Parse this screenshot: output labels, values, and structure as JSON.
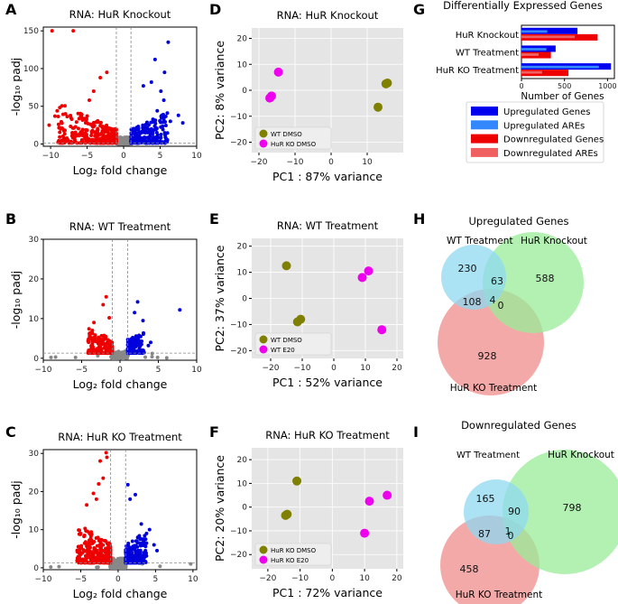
{
  "panel_letters": {
    "A": "A",
    "B": "B",
    "C": "C",
    "D": "D",
    "E": "E",
    "F": "F",
    "G": "G",
    "H": "H",
    "I": "I"
  },
  "chart_data": [
    {
      "id": "A",
      "type": "scatter",
      "title": "RNA: HuR Knockout",
      "xlabel": "Log₂ fold change",
      "ylabel": "-log₁₀ padj",
      "xlim": [
        -11,
        10
      ],
      "ylim": [
        -3,
        155
      ],
      "xticks": [
        -10,
        -5,
        0,
        5,
        10
      ],
      "yticks": [
        0,
        50,
        100,
        150
      ],
      "xtick_labels": [
        "−10",
        "−5",
        "0",
        "5",
        "10"
      ],
      "ytick_labels": [
        "0",
        "50",
        "100",
        "150"
      ],
      "fc_threshold": 1,
      "padj_line": 1.3,
      "colors": {
        "up": "#0000dd",
        "down": "#ee0000",
        "ns": "#888888"
      },
      "gen": {
        "seed": 11,
        "n_up": 240,
        "n_down": 340,
        "n_ns": 260,
        "up_max_x": 6,
        "down_min_x": -9,
        "y_mean": 18,
        "y_max": 130
      },
      "highlight": [
        [
          -9.8,
          150
        ],
        [
          -6.9,
          150
        ],
        [
          -9.1,
          44
        ],
        [
          -9.4,
          37
        ],
        [
          -10.2,
          25
        ],
        [
          -8.6,
          20
        ],
        [
          6.1,
          135
        ],
        [
          4.3,
          112
        ],
        [
          5.6,
          95
        ],
        [
          3.8,
          82
        ],
        [
          5.1,
          70
        ],
        [
          2.7,
          77
        ],
        [
          5.5,
          58
        ],
        [
          7.5,
          38
        ],
        [
          8.1,
          28
        ],
        [
          6.4,
          30
        ],
        [
          4.6,
          44
        ],
        [
          -4.1,
          70
        ],
        [
          -3.2,
          88
        ],
        [
          -2.3,
          95
        ],
        [
          -4.7,
          58
        ]
      ]
    },
    {
      "id": "B",
      "type": "scatter",
      "title": "RNA: WT Treatment",
      "xlabel": "Log₂ fold change",
      "ylabel": "-log₁₀ padj",
      "xlim": [
        -10,
        10
      ],
      "ylim": [
        -0.5,
        30
      ],
      "xticks": [
        -10,
        -5,
        0,
        5,
        10
      ],
      "yticks": [
        0,
        10,
        20,
        30
      ],
      "xtick_labels": [
        "−10",
        "−5",
        "0",
        "5",
        "10"
      ],
      "ytick_labels": [
        "0",
        "10",
        "20",
        "30"
      ],
      "fc_threshold": 1,
      "padj_line": 1.3,
      "colors": {
        "up": "#0000dd",
        "down": "#ee0000",
        "ns": "#888888"
      },
      "gen": {
        "seed": 23,
        "n_up": 140,
        "n_down": 200,
        "n_ns": 200,
        "up_max_x": 3.2,
        "down_min_x": -4.2,
        "y_mean": 3.5,
        "y_max": 15
      },
      "highlight": [
        [
          -1.8,
          15.5
        ],
        [
          -2.2,
          13.5
        ],
        [
          2.3,
          14.2
        ],
        [
          1.9,
          11.5
        ],
        [
          7.8,
          12.2
        ],
        [
          3.0,
          9.5
        ],
        [
          -3.4,
          9.0
        ],
        [
          -1.4,
          10.2
        ],
        [
          4.0,
          4.0
        ],
        [
          3.7,
          3.2
        ],
        [
          -9.0,
          0.2
        ],
        [
          -8.4,
          0.3
        ],
        [
          -5.8,
          0.2
        ],
        [
          4.9,
          0.2
        ],
        [
          6.1,
          0.1
        ]
      ]
    },
    {
      "id": "C",
      "type": "scatter",
      "title": "RNA: HuR KO Treatment",
      "xlabel": "Log₂ fold change",
      "ylabel": "-log₁₀ padj",
      "xlim": [
        -10,
        10.5
      ],
      "ylim": [
        -0.5,
        31
      ],
      "xticks": [
        -10,
        -5,
        0,
        5,
        10
      ],
      "yticks": [
        0,
        10,
        20,
        30
      ],
      "xtick_labels": [
        "−10",
        "−5",
        "0",
        "5",
        "10"
      ],
      "ytick_labels": [
        "0",
        "10",
        "20",
        "30"
      ],
      "fc_threshold": 1,
      "padj_line": 1.3,
      "colors": {
        "up": "#0000dd",
        "down": "#ee0000",
        "ns": "#888888"
      },
      "gen": {
        "seed": 37,
        "n_up": 220,
        "n_down": 300,
        "n_ns": 260,
        "up_max_x": 3.8,
        "down_min_x": -5.5,
        "y_mean": 5,
        "y_max": 22
      },
      "highlight": [
        [
          -1.6,
          30.2
        ],
        [
          -1.5,
          29.0
        ],
        [
          -2.4,
          28.0
        ],
        [
          -2.6,
          22.0
        ],
        [
          -2.0,
          23.5
        ],
        [
          -3.3,
          19.5
        ],
        [
          -2.9,
          18.0
        ],
        [
          -4.2,
          16.5
        ],
        [
          1.3,
          21.8
        ],
        [
          2.3,
          19.2
        ],
        [
          1.6,
          18.0
        ],
        [
          3.1,
          11.5
        ],
        [
          4.2,
          10.0
        ],
        [
          3.8,
          9.0
        ],
        [
          4.8,
          6.0
        ],
        [
          5.2,
          4.5
        ],
        [
          9.7,
          1.0
        ],
        [
          -7.9,
          0.3
        ],
        [
          5.6,
          0.4
        ],
        [
          -9.0,
          0.2
        ]
      ]
    },
    {
      "id": "D",
      "type": "scatter",
      "title": "RNA: HuR Knockout",
      "xlabel": "PC1 : 87% variance",
      "ylabel": "PC2: 8% variance",
      "xlim": [
        -22,
        20
      ],
      "ylim": [
        -24,
        24
      ],
      "xticks": [
        -20,
        -10,
        0,
        10
      ],
      "yticks": [
        -20,
        -10,
        0,
        10,
        20
      ],
      "xtick_labels": [
        "−20",
        "−10",
        "0",
        "10"
      ],
      "ytick_labels": [
        "−20",
        "−10",
        "0",
        "10",
        "20"
      ],
      "legend_position": "lower-left",
      "series": [
        {
          "name": "WT DMSO",
          "color": "#808000",
          "points": [
            [
              15.2,
              2.5
            ],
            [
              15.6,
              2.8
            ],
            [
              13.0,
              -6.5
            ]
          ]
        },
        {
          "name": "HuR KO DMSO",
          "color": "#ee00ee",
          "points": [
            [
              -14.6,
              7.0
            ],
            [
              -17.0,
              -3.0
            ],
            [
              -16.5,
              -2.2
            ]
          ]
        }
      ]
    },
    {
      "id": "E",
      "type": "scatter",
      "title": "RNA: WT Treatment",
      "xlabel": "PC1 : 52% variance",
      "ylabel": "PC2: 37% variance",
      "xlim": [
        -26,
        22
      ],
      "ylim": [
        -23,
        23
      ],
      "xticks": [
        -20,
        -10,
        0,
        10,
        20
      ],
      "yticks": [
        -20,
        -10,
        0,
        10,
        20
      ],
      "xtick_labels": [
        "−20",
        "−10",
        "0",
        "10",
        "20"
      ],
      "ytick_labels": [
        "−20",
        "−10",
        "0",
        "10",
        "20"
      ],
      "legend_position": "lower-left",
      "series": [
        {
          "name": "WT DMSO",
          "color": "#808000",
          "points": [
            [
              -15.0,
              12.5
            ],
            [
              -10.5,
              -8.0
            ],
            [
              -11.5,
              -9.0
            ]
          ]
        },
        {
          "name": "WT E20",
          "color": "#ee00ee",
          "points": [
            [
              11.0,
              10.5
            ],
            [
              9.0,
              8.0
            ],
            [
              15.2,
              -12.0
            ]
          ]
        }
      ]
    },
    {
      "id": "F",
      "type": "scatter",
      "title": "RNA: HuR KO Treatment",
      "xlabel": "PC1 : 72% variance",
      "ylabel": "PC2: 20% variance",
      "xlim": [
        -25,
        22
      ],
      "ylim": [
        -26,
        25
      ],
      "xticks": [
        -20,
        -10,
        0,
        10,
        20
      ],
      "yticks": [
        -20,
        -10,
        0,
        10,
        20
      ],
      "xtick_labels": [
        "−20",
        "−10",
        "0",
        "10",
        "20"
      ],
      "ytick_labels": [
        "−20",
        "−10",
        "0",
        "10",
        "20"
      ],
      "legend_position": "lower-left",
      "series": [
        {
          "name": "HuR KO DMSO",
          "color": "#808000",
          "points": [
            [
              -11.0,
              11.0
            ],
            [
              -14.5,
              -3.5
            ],
            [
              -14.0,
              -3.0
            ]
          ]
        },
        {
          "name": "HuR KO E20",
          "color": "#ee00ee",
          "points": [
            [
              11.5,
              2.5
            ],
            [
              17.0,
              5.0
            ],
            [
              10.0,
              -11.0
            ]
          ]
        }
      ]
    },
    {
      "id": "G",
      "type": "bar",
      "title": "Differentially Expressed Genes",
      "xlabel": "Number of Genes",
      "categories": [
        "HuR Knockout",
        "WT Treatment",
        "HuR KO Treatment"
      ],
      "xlim": [
        0,
        1080
      ],
      "xticks": [
        0,
        500,
        1000
      ],
      "xtick_labels": [
        "0",
        "500",
        "1000"
      ],
      "series": [
        {
          "name": "Upregulated Genes",
          "color": "#0000ee",
          "values": [
            651,
            397,
            1040
          ]
        },
        {
          "name": "Upregulated AREs",
          "color": "#3388ff",
          "values": [
            300,
            290,
            900
          ]
        },
        {
          "name": "Downregulated Genes",
          "color": "#ee0000",
          "values": [
            885,
            342,
            546
          ]
        },
        {
          "name": "Downregulated AREs",
          "color": "#f06060",
          "values": [
            620,
            200,
            240
          ]
        }
      ]
    }
  ],
  "venns": [
    {
      "id": "H",
      "title": "Upregulated Genes",
      "labels": {
        "wt": "WT Treatment",
        "hur": "HuR Knockout",
        "ko": "HuR KO Treatment"
      },
      "counts": {
        "wt_only": "230",
        "hur_only": "588",
        "ko_only": "928",
        "wt_hur": "63",
        "wt_ko": "108",
        "all": "4",
        "hur_ko": "0"
      },
      "colors": {
        "wt": "#8fd8f0",
        "hur": "#98ec98",
        "ko": "#f08c8c"
      }
    },
    {
      "id": "I",
      "title": "Downregulated Genes",
      "labels": {
        "wt": "WT Treatment",
        "hur": "HuR Knockout",
        "ko": "HuR KO Treatment"
      },
      "counts": {
        "wt_only": "165",
        "hur_only": "798",
        "ko_only": "458",
        "wt_hur": "90",
        "wt_ko": "87",
        "all": "1",
        "hur_ko": "0"
      },
      "colors": {
        "wt": "#8fd8f0",
        "hur": "#98ec98",
        "ko": "#f08c8c"
      }
    }
  ]
}
